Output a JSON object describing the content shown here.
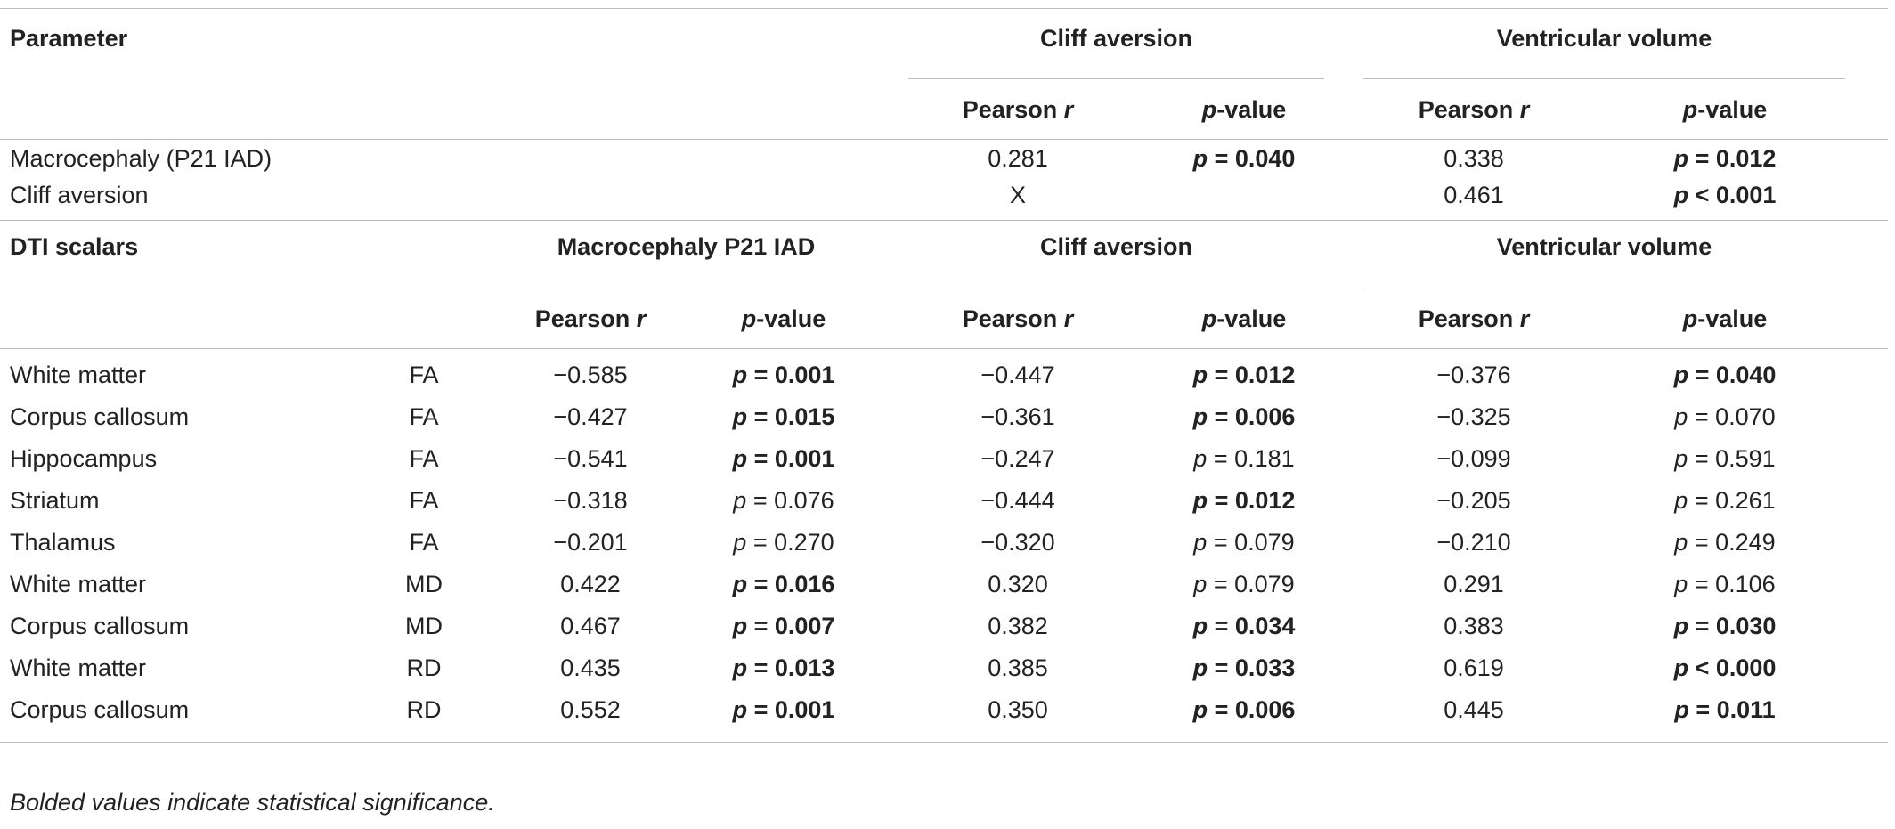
{
  "section1": {
    "title": "Parameter",
    "groups": [
      "Cliff aversion",
      "Ventricular volume"
    ],
    "sub_r": "Pearson",
    "sub_r_sym": "r",
    "sub_p_sym": "p",
    "sub_p": "-value",
    "rows": [
      {
        "label": "Macrocephaly (P21 IAD)",
        "ca_r": "0.281",
        "ca_p": "= 0.040",
        "ca_p_sig": true,
        "vv_r": "0.338",
        "vv_p": "= 0.012",
        "vv_p_sig": true
      },
      {
        "label": "Cliff aversion",
        "ca_r": "X",
        "ca_p": "",
        "ca_p_sig": false,
        "vv_r": "0.461",
        "vv_p": "< 0.001",
        "vv_p_sig": true
      }
    ]
  },
  "section2": {
    "title": "DTI scalars",
    "groups": [
      "Macrocephaly P21 IAD",
      "Cliff aversion",
      "Ventricular volume"
    ],
    "rows": [
      {
        "label": "White matter",
        "scalar": "FA",
        "m_r": "−0.585",
        "m_p": "= 0.001",
        "m_s": true,
        "c_r": "−0.447",
        "c_p": "= 0.012",
        "c_s": true,
        "v_r": "−0.376",
        "v_p": "= 0.040",
        "v_s": true
      },
      {
        "label": "Corpus callosum",
        "scalar": "FA",
        "m_r": "−0.427",
        "m_p": "= 0.015",
        "m_s": true,
        "c_r": "−0.361",
        "c_p": "= 0.006",
        "c_s": true,
        "v_r": "−0.325",
        "v_p": "= 0.070",
        "v_s": false
      },
      {
        "label": "Hippocampus",
        "scalar": "FA",
        "m_r": "−0.541",
        "m_p": "= 0.001",
        "m_s": true,
        "c_r": "−0.247",
        "c_p": "= 0.181",
        "c_s": false,
        "v_r": "−0.099",
        "v_p": "= 0.591",
        "v_s": false
      },
      {
        "label": "Striatum",
        "scalar": "FA",
        "m_r": "−0.318",
        "m_p": "= 0.076",
        "m_s": false,
        "c_r": "−0.444",
        "c_p": "= 0.012",
        "c_s": true,
        "v_r": "−0.205",
        "v_p": "= 0.261",
        "v_s": false
      },
      {
        "label": "Thalamus",
        "scalar": "FA",
        "m_r": "−0.201",
        "m_p": "= 0.270",
        "m_s": false,
        "c_r": "−0.320",
        "c_p": "= 0.079",
        "c_s": false,
        "v_r": "−0.210",
        "v_p": "= 0.249",
        "v_s": false
      },
      {
        "label": "White matter",
        "scalar": "MD",
        "m_r": "0.422",
        "m_p": "= 0.016",
        "m_s": true,
        "c_r": "0.320",
        "c_p": "= 0.079",
        "c_s": false,
        "v_r": "0.291",
        "v_p": "= 0.106",
        "v_s": false
      },
      {
        "label": "Corpus callosum",
        "scalar": "MD",
        "m_r": "0.467",
        "m_p": "= 0.007",
        "m_s": true,
        "c_r": "0.382",
        "c_p": "= 0.034",
        "c_s": true,
        "v_r": "0.383",
        "v_p": "= 0.030",
        "v_s": true
      },
      {
        "label": "White matter",
        "scalar": "RD",
        "m_r": "0.435",
        "m_p": "= 0.013",
        "m_s": true,
        "c_r": "0.385",
        "c_p": "= 0.033",
        "c_s": true,
        "v_r": "0.619",
        "v_p": "< 0.000",
        "v_s": true
      },
      {
        "label": "Corpus callosum",
        "scalar": "RD",
        "m_r": "0.552",
        "m_p": "= 0.001",
        "m_s": true,
        "c_r": "0.350",
        "c_p": "= 0.006",
        "c_s": true,
        "v_r": "0.445",
        "v_p": "= 0.011",
        "v_s": true
      }
    ]
  },
  "footnote": "Bolded values indicate statistical significance."
}
